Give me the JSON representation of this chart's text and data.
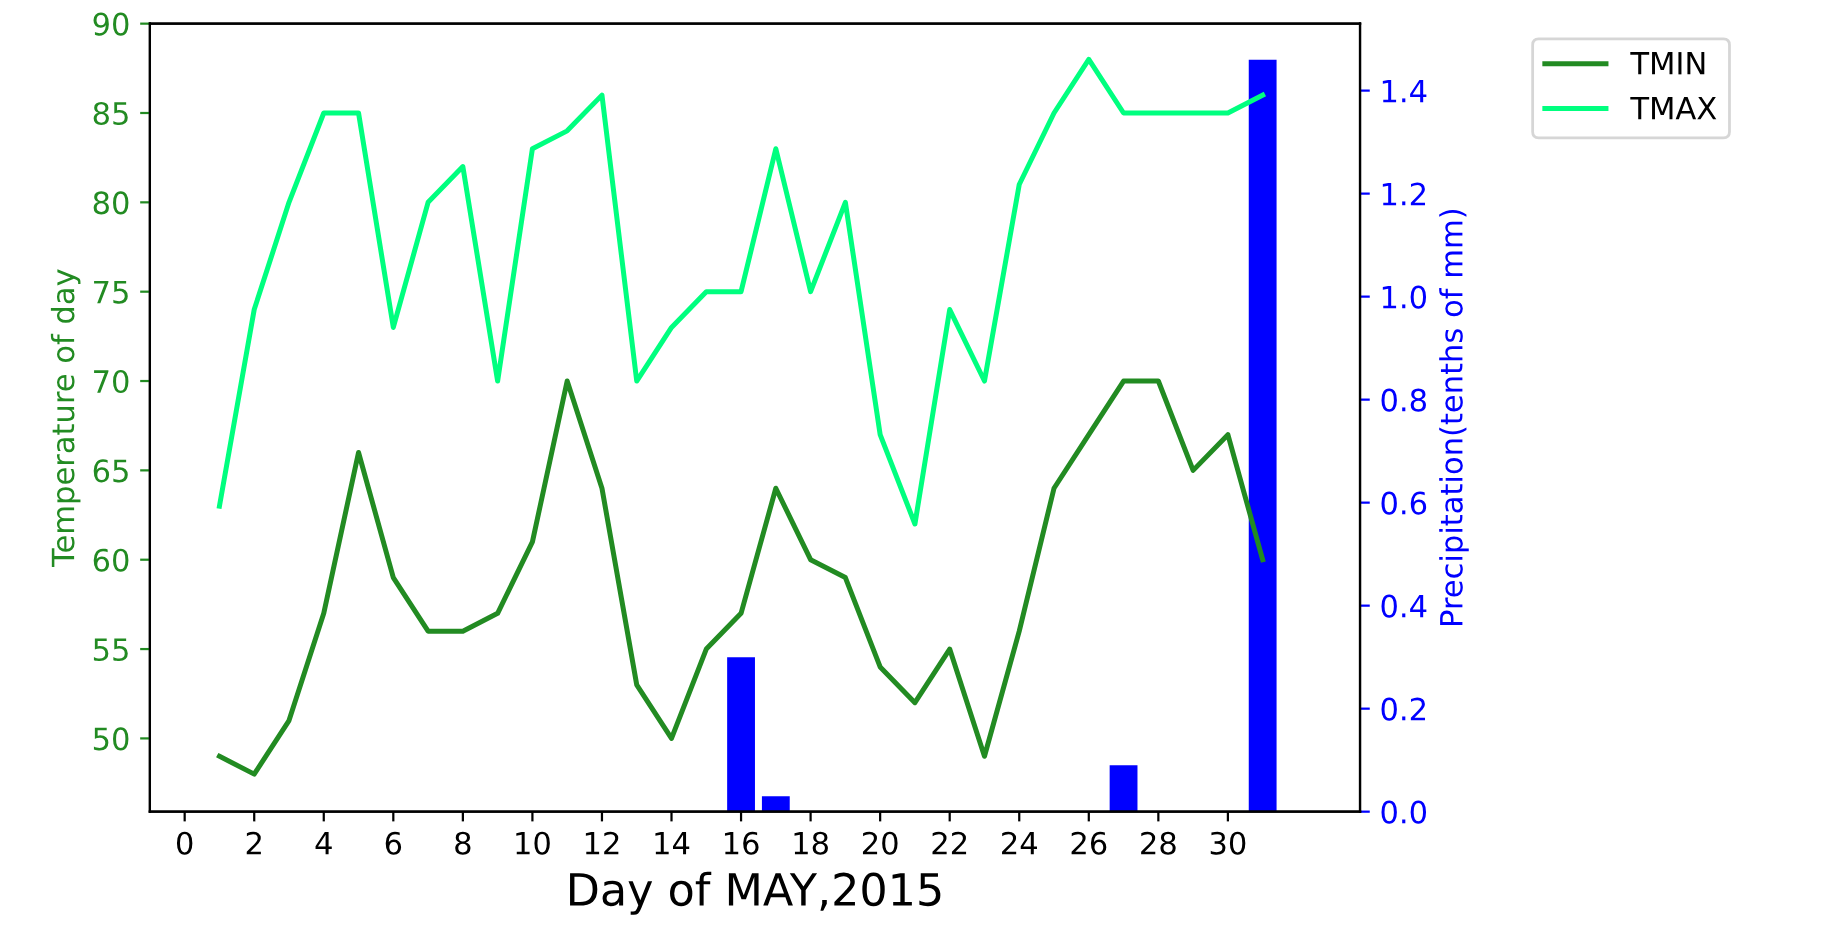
{
  "chart_data": {
    "type": "line",
    "xlabel": "Day of MAY,2015",
    "ylabel": "Temperature of day",
    "y2label": "Precipitation(tenths of mm)",
    "x": [
      1,
      2,
      3,
      4,
      5,
      6,
      7,
      8,
      9,
      10,
      11,
      12,
      13,
      14,
      15,
      16,
      17,
      18,
      19,
      20,
      21,
      22,
      23,
      24,
      25,
      26,
      27,
      28,
      29,
      30,
      31
    ],
    "series": [
      {
        "name": "TMIN",
        "color": "#228b22",
        "values": [
          49,
          48,
          51,
          57,
          66,
          59,
          56,
          56,
          57,
          61,
          70,
          64,
          53,
          50,
          55,
          57,
          64,
          60,
          59,
          54,
          52,
          55,
          49,
          56,
          64,
          67,
          70,
          70,
          65,
          67,
          60
        ]
      },
      {
        "name": "TMAX",
        "color": "#00ff7f",
        "values": [
          63,
          74,
          80,
          85,
          85,
          73,
          80,
          82,
          70,
          83,
          84,
          86,
          70,
          73,
          75,
          75,
          83,
          75,
          80,
          67,
          62,
          74,
          70,
          81,
          85,
          88,
          85,
          85,
          85,
          85,
          86
        ]
      },
      {
        "type": "bar",
        "axis": "y2",
        "color": "#0000ff",
        "values": [
          0,
          0,
          0,
          0,
          0,
          0,
          0,
          0,
          0,
          0,
          0,
          0,
          0,
          0,
          0,
          0.3,
          0.03,
          0,
          0,
          0,
          0,
          0,
          0,
          0,
          0,
          0,
          0.09,
          0,
          0,
          0,
          1.46
        ]
      }
    ],
    "xlim": [
      -1,
      33.8
    ],
    "xticks": [
      0,
      2,
      4,
      6,
      8,
      10,
      12,
      14,
      16,
      18,
      20,
      22,
      24,
      26,
      28,
      30
    ],
    "ylim": [
      45.9,
      90
    ],
    "yticks": [
      50,
      55,
      60,
      65,
      70,
      75,
      80,
      85,
      90
    ],
    "y2lim": [
      0,
      1.53
    ],
    "y2ticks": [
      {
        "value": 0,
        "label": "0.0"
      },
      {
        "value": 0.2,
        "label": "0.2"
      },
      {
        "value": 0.4,
        "label": "0.4"
      },
      {
        "value": 0.6,
        "label": "0.6"
      },
      {
        "value": 0.8,
        "label": "0.8"
      },
      {
        "value": 1,
        "label": "1.0"
      },
      {
        "value": 1.2,
        "label": "1.2"
      },
      {
        "value": 1.4,
        "label": "1.4"
      }
    ],
    "legend": "top right",
    "grid": false
  }
}
